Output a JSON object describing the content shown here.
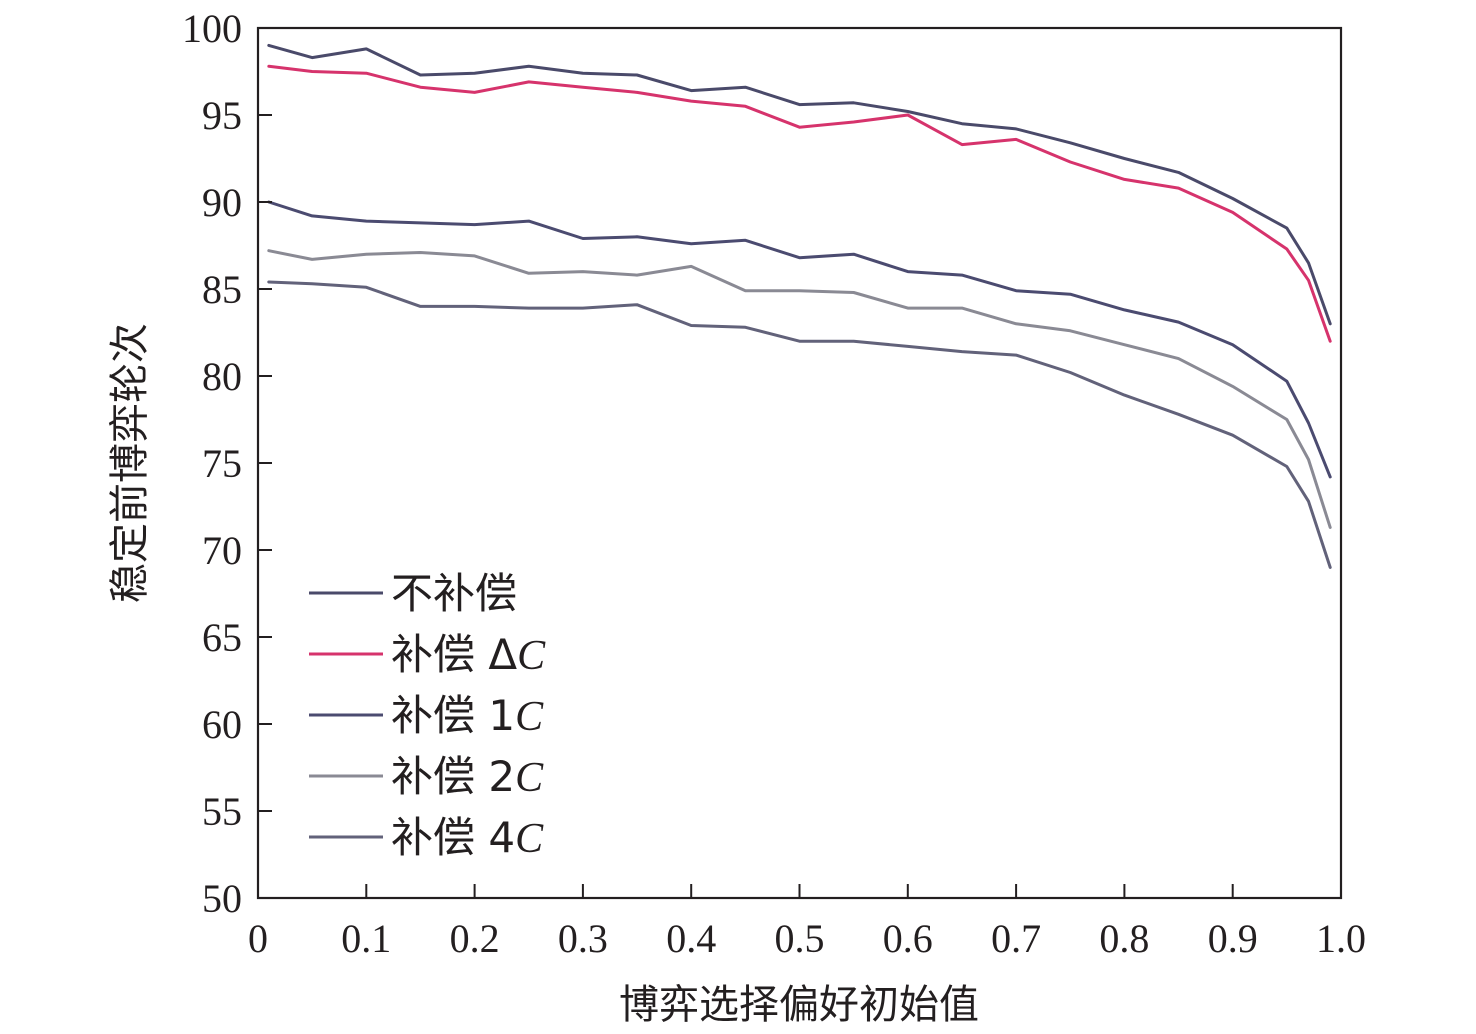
{
  "chart_data": {
    "type": "line",
    "title": "",
    "xlabel": "博弈选择偏好初始值",
    "ylabel": "稳定前博弈轮次",
    "xlim": [
      0,
      1.0
    ],
    "ylim": [
      50,
      100
    ],
    "x_ticks": [
      "0",
      "0.1",
      "0.2",
      "0.3",
      "0.4",
      "0.5",
      "0.6",
      "0.7",
      "0.8",
      "0.9",
      "1.0"
    ],
    "y_ticks": [
      "50",
      "55",
      "60",
      "65",
      "70",
      "75",
      "80",
      "85",
      "90",
      "95",
      "100"
    ],
    "grid": false,
    "legend_position": "bottom-left",
    "x": [
      0.01,
      0.05,
      0.1,
      0.15,
      0.2,
      0.25,
      0.3,
      0.35,
      0.4,
      0.45,
      0.5,
      0.55,
      0.6,
      0.65,
      0.7,
      0.75,
      0.8,
      0.85,
      0.9,
      0.95,
      0.97,
      0.99
    ],
    "series": [
      {
        "name": "不补偿",
        "name_parts": [
          "不补偿",
          ""
        ],
        "color": "#4a4a6a",
        "values": [
          99.0,
          98.3,
          98.8,
          97.3,
          97.4,
          97.8,
          97.4,
          97.3,
          96.4,
          96.6,
          95.6,
          95.7,
          95.2,
          94.5,
          94.2,
          93.4,
          92.5,
          91.7,
          90.2,
          88.5,
          86.5,
          83.0
        ]
      },
      {
        "name": "补偿 ΔC",
        "name_parts": [
          "补偿 Δ",
          "C"
        ],
        "color": "#d6336c",
        "values": [
          97.8,
          97.5,
          97.4,
          96.6,
          96.3,
          96.9,
          96.6,
          96.3,
          95.8,
          95.5,
          94.3,
          94.6,
          95.0,
          93.3,
          93.6,
          92.3,
          91.3,
          90.8,
          89.4,
          87.3,
          85.5,
          82.0
        ]
      },
      {
        "name": "补偿 1C",
        "name_parts": [
          "补偿 1",
          "C"
        ],
        "color": "#4b4b70",
        "values": [
          90.0,
          89.2,
          88.9,
          88.8,
          88.7,
          88.9,
          87.9,
          88.0,
          87.6,
          87.8,
          86.8,
          87.0,
          86.0,
          85.8,
          84.9,
          84.7,
          83.8,
          83.1,
          81.8,
          79.7,
          77.3,
          74.2
        ]
      },
      {
        "name": "补偿 2C",
        "name_parts": [
          "补偿 2",
          "C"
        ],
        "color": "#8a8a94",
        "values": [
          87.2,
          86.7,
          87.0,
          87.1,
          86.9,
          85.9,
          86.0,
          85.8,
          86.3,
          84.9,
          84.9,
          84.8,
          83.9,
          83.9,
          83.0,
          82.6,
          81.8,
          81.0,
          79.4,
          77.5,
          75.2,
          71.3
        ]
      },
      {
        "name": "补偿 4C",
        "name_parts": [
          "补偿 4",
          "C"
        ],
        "color": "#62627a",
        "values": [
          85.4,
          85.3,
          85.1,
          84.0,
          84.0,
          83.9,
          83.9,
          84.1,
          82.9,
          82.8,
          82.0,
          82.0,
          81.7,
          81.4,
          81.2,
          80.2,
          78.9,
          77.8,
          76.6,
          74.8,
          72.8,
          69.0
        ]
      }
    ]
  }
}
